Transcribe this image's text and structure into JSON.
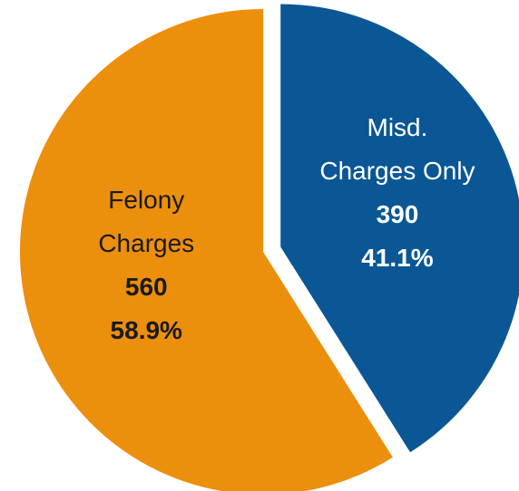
{
  "chart_data": {
    "type": "pie",
    "categories": [
      "Misd. Charges Only",
      "Felony Charges"
    ],
    "values": [
      390,
      560
    ],
    "percent_labels": [
      "41.1%",
      "58.9%"
    ],
    "colors": [
      "#0b5795",
      "#ec8f0c"
    ],
    "label_colors": [
      "#ffffff",
      "#1a1a1a"
    ]
  }
}
